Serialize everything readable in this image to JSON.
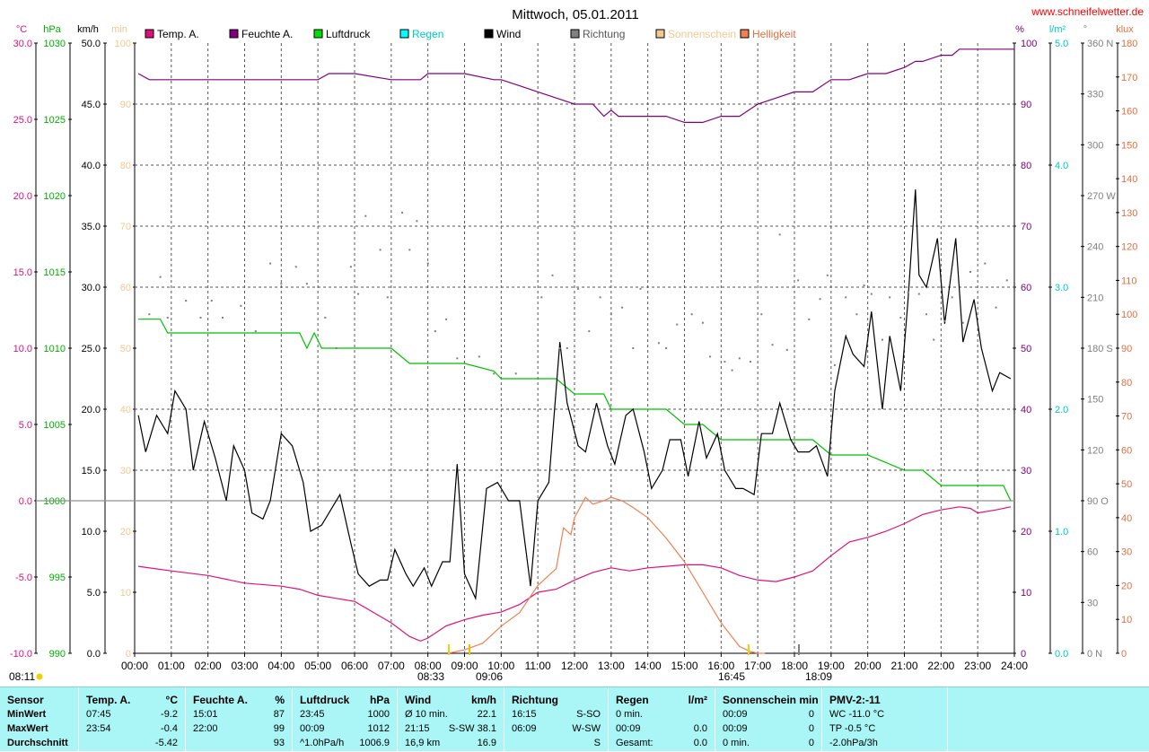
{
  "title": "Mittwoch, 05.01.2011",
  "website": "www.schneifelwetter.de",
  "chart_data": {
    "type": "line",
    "title": "Mittwoch, 05.01.2011",
    "x_unit": "hours",
    "x_range": [
      0,
      24
    ],
    "x_ticks": [
      "00:00",
      "01:00",
      "02:00",
      "03:00",
      "04:00",
      "05:00",
      "06:00",
      "07:00",
      "08:00",
      "09:00",
      "10:00",
      "11:00",
      "12:00",
      "13:00",
      "14:00",
      "15:00",
      "16:00",
      "17:00",
      "18:00",
      "19:00",
      "20:00",
      "21:00",
      "22:00",
      "23:00",
      "24:00"
    ],
    "grid": true,
    "legend_position": "top",
    "axes": {
      "temp": {
        "unit": "°C",
        "range": [
          -10,
          30
        ],
        "ticks": [
          "30.0",
          "25.0",
          "20.0",
          "15.0",
          "10.0",
          "5.0",
          "0.0",
          "-5.0",
          "-10.0"
        ],
        "color": "#e0107a"
      },
      "pressure": {
        "unit": "hPa",
        "range": [
          990,
          1030
        ],
        "ticks": [
          "1030",
          "1025",
          "1020",
          "1015",
          "1010",
          "1005",
          "1000",
          "995",
          "990"
        ],
        "color": "#00b000"
      },
      "wind": {
        "unit": "km/h",
        "range": [
          0,
          50
        ],
        "ticks": [
          "50.0",
          "45.0",
          "40.0",
          "35.0",
          "30.0",
          "25.0",
          "20.0",
          "15.0",
          "10.0",
          "5.0",
          "0.0"
        ],
        "color": "#000000"
      },
      "sun": {
        "unit": "min",
        "range": [
          0,
          100
        ],
        "ticks": [
          "100",
          "90",
          "80",
          "70",
          "60",
          "50",
          "40",
          "30",
          "20",
          "10",
          "0"
        ],
        "color": "#f0c890"
      },
      "humidity": {
        "unit": "%",
        "range": [
          0,
          100
        ],
        "ticks": [
          "100",
          "90",
          "80",
          "70",
          "60",
          "50",
          "40",
          "30",
          "20",
          "10",
          "0"
        ],
        "color": "#800080"
      },
      "rain": {
        "unit": "l/m²",
        "range": [
          0,
          5
        ],
        "ticks": [
          "5.0",
          "4.0",
          "3.0",
          "2.0",
          "1.0",
          "0.0"
        ],
        "color": "#00c8c8"
      },
      "direction": {
        "unit": "°",
        "range": [
          0,
          360
        ],
        "ticks": [
          "360 N",
          "330",
          "300",
          "270 W",
          "240",
          "210",
          "180 S",
          "150",
          "120",
          "90 O",
          "60",
          "30",
          "0 N"
        ],
        "color": "#808080"
      },
      "brightness": {
        "unit": "klux",
        "range": [
          0,
          180
        ],
        "ticks": [
          "180",
          "170",
          "160",
          "150",
          "140",
          "130",
          "120",
          "110",
          "100",
          "90",
          "80",
          "70",
          "60",
          "50",
          "40",
          "30",
          "20",
          "10",
          "0"
        ],
        "color": "#e07040"
      }
    },
    "legend": [
      {
        "label": "Temp. A.",
        "color": "#e0107a",
        "label_color": "#000000"
      },
      {
        "label": "Feuchte A.",
        "color": "#800080",
        "label_color": "#000000"
      },
      {
        "label": "Luftdruck",
        "color": "#00e000",
        "label_color": "#000000"
      },
      {
        "label": "Regen",
        "color": "#00ffff",
        "label_color": "#00c8c8"
      },
      {
        "label": "Wind",
        "color": "#000000",
        "label_color": "#000000"
      },
      {
        "label": "Richtung",
        "color": "#808080",
        "label_color": "#555555"
      },
      {
        "label": "Sonnenschein",
        "color": "#f0c890",
        "label_color": "#f0c890"
      },
      {
        "label": "Helligkeit",
        "color": "#f08050",
        "label_color": "#e07040"
      }
    ],
    "series": [
      {
        "key": "humidity",
        "color": "#800080",
        "axis": "humidity",
        "x": [
          0.1,
          0.4,
          1,
          2,
          3,
          4,
          5,
          5.3,
          6,
          7,
          7.8,
          8,
          9,
          9.8,
          10,
          10.5,
          11,
          11.5,
          12,
          12.5,
          12.8,
          13,
          13.2,
          14,
          14.5,
          15,
          15.5,
          16,
          16.5,
          17,
          17.5,
          18,
          18.5,
          19,
          19.5,
          20,
          20.5,
          21,
          21.3,
          21.5,
          22,
          22.3,
          22.5,
          23,
          24
        ],
        "y": [
          95,
          94,
          94,
          94,
          94,
          94,
          94,
          95,
          95,
          94,
          94,
          95,
          95,
          94,
          94,
          93,
          92,
          91,
          90,
          90,
          88,
          89,
          88,
          88,
          88,
          87,
          87,
          88,
          88,
          90,
          91,
          92,
          92,
          94,
          94,
          95,
          95,
          96,
          97,
          97,
          98,
          98,
          99,
          99,
          99
        ]
      },
      {
        "key": "pressure",
        "color": "#00c000",
        "axis": "pressure",
        "x": [
          0.1,
          0.7,
          0.9,
          2,
          3,
          4,
          4.5,
          4.7,
          4.9,
          5.1,
          6,
          7,
          7.5,
          8,
          9,
          9.8,
          10,
          11,
          11.5,
          12,
          12.5,
          12.8,
          13,
          14,
          14.5,
          15,
          15.5,
          16,
          17,
          18,
          18.5,
          19,
          20,
          21,
          21.5,
          22,
          23,
          23.7,
          23.9
        ],
        "y": [
          1011.9,
          1011.9,
          1011,
          1011,
          1011,
          1011,
          1011,
          1010,
          1011,
          1010,
          1010,
          1010,
          1009,
          1009,
          1009,
          1008.5,
          1008,
          1008,
          1008,
          1007,
          1007,
          1007,
          1006,
          1006,
          1006,
          1005,
          1005,
          1004,
          1004,
          1004,
          1004,
          1003,
          1003,
          1002,
          1002,
          1001,
          1001,
          1001,
          1000
        ]
      },
      {
        "key": "temperature",
        "color": "#e0107a",
        "axis": "temp",
        "x": [
          0.1,
          1,
          2,
          3,
          4,
          4.5,
          5,
          5.5,
          6,
          6.5,
          7,
          7.5,
          7.8,
          8,
          8.5,
          9,
          9.5,
          10,
          10.5,
          11,
          11.5,
          12,
          12.5,
          13,
          13.5,
          14,
          14.5,
          15,
          15.5,
          16,
          16.5,
          17,
          17.5,
          18,
          18.5,
          19,
          19.5,
          20,
          20.5,
          21,
          21.5,
          22,
          22.5,
          22.8,
          23,
          23.5,
          23.9
        ],
        "y": [
          -4.3,
          -4.6,
          -4.9,
          -5.4,
          -5.6,
          -5.8,
          -6.2,
          -6.4,
          -6.6,
          -7.3,
          -8,
          -8.9,
          -9.2,
          -9,
          -8.2,
          -7.8,
          -7.5,
          -7.3,
          -6.8,
          -6,
          -5.8,
          -5.2,
          -4.7,
          -4.4,
          -4.6,
          -4.4,
          -4.3,
          -4.2,
          -4.2,
          -4.4,
          -4.9,
          -5.2,
          -5.3,
          -5.0,
          -4.6,
          -3.6,
          -2.7,
          -2.4,
          -2.0,
          -1.5,
          -0.9,
          -0.6,
          -0.4,
          -0.5,
          -0.8,
          -0.6,
          -0.4
        ]
      },
      {
        "key": "wind",
        "color": "#000000",
        "axis": "wind",
        "x": [
          0.1,
          0.3,
          0.6,
          0.9,
          1.1,
          1.4,
          1.6,
          1.9,
          2.2,
          2.5,
          2.7,
          3,
          3.2,
          3.5,
          3.7,
          4,
          4.3,
          4.6,
          4.8,
          5.1,
          5.4,
          5.6,
          5.9,
          6.1,
          6.4,
          6.7,
          6.9,
          7.1,
          7.4,
          7.6,
          7.9,
          8.1,
          8.4,
          8.6,
          8.8,
          9,
          9.3,
          9.6,
          9.9,
          10.2,
          10.5,
          10.8,
          11,
          11.3,
          11.6,
          11.8,
          12.1,
          12.3,
          12.6,
          12.9,
          13.1,
          13.4,
          13.6,
          13.9,
          14.1,
          14.4,
          14.6,
          14.9,
          15.1,
          15.4,
          15.6,
          15.9,
          16.1,
          16.4,
          16.6,
          16.9,
          17.1,
          17.4,
          17.6,
          17.9,
          18.1,
          18.4,
          18.6,
          18.9,
          19.1,
          19.4,
          19.6,
          19.9,
          20.1,
          20.4,
          20.6,
          20.9,
          21.1,
          21.3,
          21.4,
          21.6,
          21.9,
          22.1,
          22.4,
          22.6,
          22.9,
          23.1,
          23.4,
          23.6,
          23.9
        ],
        "y": [
          19.5,
          16.5,
          19.5,
          18,
          21.5,
          20,
          15,
          19,
          16,
          12.5,
          17,
          15,
          11.5,
          11,
          12.5,
          18,
          17,
          14,
          10,
          10.5,
          12,
          13,
          9,
          6.5,
          5.5,
          6,
          6,
          8.5,
          6.5,
          5.5,
          7,
          5.5,
          7.5,
          7.5,
          15.5,
          6.5,
          4.5,
          13.5,
          14,
          12.5,
          12.5,
          5.5,
          12.5,
          14,
          25.5,
          20.5,
          17,
          16.5,
          20.5,
          17,
          15.5,
          19.5,
          20,
          16.5,
          13.5,
          15,
          17.5,
          17.5,
          14.5,
          19,
          16,
          18,
          15,
          13.5,
          13.5,
          13,
          18,
          18,
          20.5,
          17.5,
          16.5,
          16.5,
          17,
          14.5,
          21.5,
          26,
          24.5,
          23.5,
          28,
          20,
          26,
          21.5,
          29,
          38,
          31,
          30,
          34,
          27,
          34,
          25.5,
          29,
          25,
          21.5,
          23,
          22.5
        ]
      },
      {
        "key": "brightness",
        "color": "#f08050",
        "axis": "brightness",
        "x": [
          8.55,
          9,
          9.5,
          10,
          10.5,
          11,
          11.5,
          11.7,
          11.9,
          12,
          12.3,
          12.5,
          12.8,
          13,
          13.3,
          13.6,
          14,
          14.5,
          15,
          15.5,
          16,
          16.5,
          16.8,
          17,
          17.2
        ],
        "y": [
          0,
          1,
          3,
          8,
          12,
          20,
          25,
          37,
          35,
          40,
          46,
          44,
          45,
          46,
          45,
          43,
          40,
          34,
          27,
          18,
          9,
          2,
          0.5,
          0,
          0
        ]
      },
      {
        "key": "sunshine",
        "color": "#f0c890",
        "axis": "sun",
        "x": [],
        "y": []
      },
      {
        "key": "rain",
        "color": "#00ffff",
        "axis": "rain",
        "x": [],
        "y": []
      }
    ],
    "direction_points": {
      "axis": "direction",
      "color": "#808080",
      "x": [
        0.4,
        0.7,
        0.9,
        1.4,
        1.8,
        2.1,
        2.4,
        2.9,
        3.3,
        3.7,
        4,
        4.4,
        4.7,
        5.2,
        5.5,
        5.9,
        6.1,
        6.3,
        6.7,
        6.9,
        7.3,
        7.5,
        7.7,
        8,
        8.2,
        8.5,
        8.8,
        9.4,
        9.8,
        10.4,
        11.1,
        11.4,
        11.6,
        11.8,
        12.1,
        12.4,
        12.7,
        13,
        13.3,
        13.6,
        13.8,
        14.3,
        14.5,
        14.8,
        15.2,
        15.5,
        15.7,
        16.1,
        16.3,
        16.5,
        16.8,
        17.1,
        17.4,
        17.6,
        17.8,
        18.1,
        18.4,
        18.7,
        18.9,
        19.1,
        19.4,
        19.7,
        19.9,
        20.1,
        20.4,
        20.6,
        20.9,
        21.1,
        21.4,
        21.6,
        21.8,
        22.1,
        22.3,
        22.6,
        22.8,
        23.2,
        23.5,
        23.8
      ],
      "y": [
        200,
        222,
        198,
        208,
        198,
        208,
        198,
        205,
        190,
        230,
        218,
        228,
        218,
        198,
        180,
        228,
        212,
        258,
        238,
        210,
        260,
        238,
        255,
        230,
        190,
        197,
        174,
        175,
        165,
        165,
        210,
        223,
        180,
        180,
        215,
        190,
        210,
        200,
        204,
        180,
        215,
        183,
        180,
        194,
        200,
        195,
        175,
        172,
        167,
        174,
        172,
        200,
        182,
        247,
        179,
        220,
        197,
        209,
        223,
        170,
        210,
        200,
        217,
        212,
        185,
        210,
        198,
        213,
        212,
        200,
        185,
        196,
        210,
        195,
        225,
        230,
        204,
        220
      ]
    },
    "markers": [
      {
        "label": "08:33",
        "color": "#f0d000"
      },
      {
        "label": "09:06",
        "color": "#f0c000"
      },
      {
        "label": "16:45",
        "color": "#f0d000"
      },
      {
        "label": "18:09",
        "color": "#808080"
      }
    ],
    "sun_icon_label": "08:11"
  },
  "stats": {
    "columns": [
      {
        "head": "Sensor",
        "unit": "",
        "rows": [
          "MinWert",
          "MaxWert",
          "Durchschnitt"
        ]
      },
      {
        "head": "Temp. A.",
        "unit": "°C",
        "rows": [
          [
            "07:45",
            "-9.2"
          ],
          [
            "23:54",
            "-0.4"
          ],
          [
            "",
            "-5.42"
          ]
        ]
      },
      {
        "head": "Feuchte A.",
        "unit": "%",
        "rows": [
          [
            "15:01",
            "87"
          ],
          [
            "22:00",
            "99"
          ],
          [
            "",
            "93"
          ]
        ]
      },
      {
        "head": "Luftdruck",
        "unit": "hPa",
        "rows": [
          [
            "23:45",
            "1000"
          ],
          [
            "00:09",
            "1012"
          ],
          [
            "^1.0hPa/h",
            "1006.9"
          ]
        ]
      },
      {
        "head": "Wind",
        "unit": "km/h",
        "rows": [
          [
            "Ø 10 min.",
            "22.1"
          ],
          [
            "21:15",
            "S-SW 38.1"
          ],
          [
            "16,9 km",
            "16.9"
          ]
        ]
      },
      {
        "head": "Richtung",
        "unit": "",
        "rows": [
          [
            "16:15",
            "S-SO"
          ],
          [
            "06:09",
            "W-SW"
          ],
          [
            "",
            "S"
          ]
        ]
      },
      {
        "head": "Regen",
        "unit": "l/m²",
        "rows": [
          [
            "0 min.",
            ""
          ],
          [
            "00:09",
            "0.0"
          ],
          [
            "Gesamt:",
            "0.0"
          ]
        ]
      },
      {
        "head": "Sonnenschein min",
        "unit": "",
        "rows": [
          [
            "00:09",
            "0"
          ],
          [
            "00:09",
            "0"
          ],
          [
            "0 min.",
            "0"
          ]
        ]
      },
      {
        "head": "PMV-2:-11",
        "unit": "",
        "rows": [
          [
            "WC -11.0 °C",
            ""
          ],
          [
            "TP -0.5 °C",
            ""
          ],
          [
            "-2.0hPa/3h",
            ""
          ]
        ]
      }
    ]
  }
}
